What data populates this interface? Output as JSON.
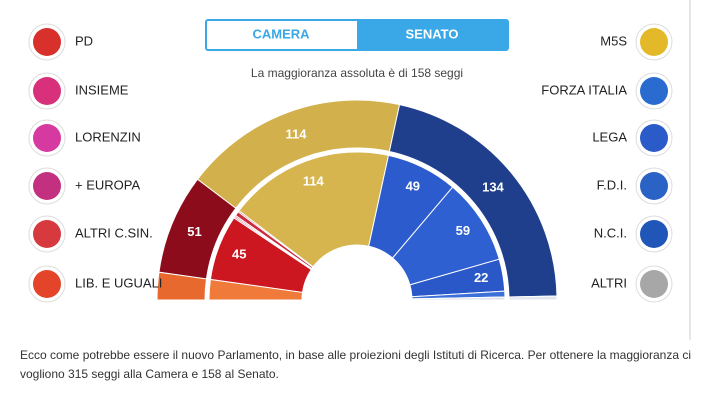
{
  "chart_data": {
    "type": "parliament",
    "toggle": [
      "CAMERA",
      "SENATO"
    ],
    "subtitle": "La maggioranza assoluta è di 158 seggi",
    "note": "Ecco come potrebbe essere il nuovo Parlamento, in base alle proiezioni degli Istituti di Ricerca. Per ottenere la maggioranza ci vogliono 315 seggi alla Camera e 158 al Senato.",
    "rings": [
      {
        "values": [
          14,
          51,
          114,
          134,
          2
        ],
        "colors": [
          "#e8692e",
          "#8c0c1c",
          "#d2b04b",
          "#1f3f8c",
          "#e3e6ef"
        ]
      },
      {
        "values": [
          14,
          45,
          1,
          1,
          3,
          1,
          114,
          49,
          59,
          22,
          4,
          2
        ],
        "colors": [
          "#ef7a3a",
          "#cc1620",
          "#d93a4a",
          "#d8364a",
          "#c92a3c",
          "#d43b3b",
          "#d6b44e",
          "#2b5bcc",
          "#2e60d2",
          "#2a58c8",
          "#3d6fd8",
          "#dde2ee"
        ]
      }
    ],
    "legend_left": [
      {
        "name": "PD",
        "color": "#d8302a"
      },
      {
        "name": "INSIEME",
        "color": "#d8307a"
      },
      {
        "name": "LORENZIN",
        "color": "#d63aa0"
      },
      {
        "name": "+ EUROPA",
        "color": "#c43080"
      },
      {
        "name": "ALTRI C.SIN.",
        "color": "#d63a3f"
      },
      {
        "name": "LIB. E UGUALI",
        "color": "#e4452a"
      }
    ],
    "legend_right": [
      {
        "name": "M5S",
        "color": "#e3b92a"
      },
      {
        "name": "FORZA ITALIA",
        "color": "#2a6bd0"
      },
      {
        "name": "LEGA",
        "color": "#2a5bc8"
      },
      {
        "name": "F.D.I.",
        "color": "#2a62c6"
      },
      {
        "name": "N.C.I.",
        "color": "#1f56b8"
      },
      {
        "name": "ALTRI",
        "color": "#a7a7a7"
      }
    ]
  }
}
